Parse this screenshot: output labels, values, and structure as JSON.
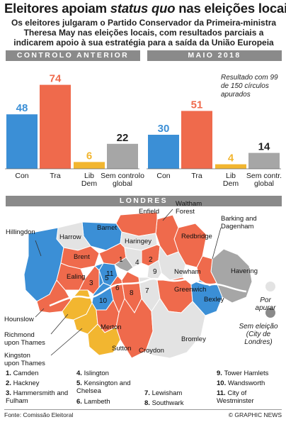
{
  "headline": {
    "part1": "Eleitores apoiam ",
    "italic": "status quo",
    "part2": " nas eleições locais"
  },
  "subhead": "Os eleitores julgaram o Partido Conservador da Primeira-ministra Theresa May nas eleições locais, com resultados parciais a indicarem apoio à sua estratégia para a saída da União Europeia",
  "chart_data": [
    {
      "type": "bar",
      "title": "CONTROLO ANTERIOR",
      "categories": [
        "Con",
        "Tra",
        "Lib Dem",
        "Sem controlo global"
      ],
      "values": [
        48,
        74,
        6,
        22
      ],
      "colors": [
        "#3b8fd6",
        "#ef6a4c",
        "#f2b630",
        "#a6a6a6"
      ]
    },
    {
      "type": "bar",
      "title": "MAIO 2018",
      "categories": [
        "Con",
        "Tra",
        "Lib Dem",
        "Sem contr. global"
      ],
      "values": [
        30,
        51,
        4,
        14
      ],
      "colors": [
        "#3b8fd6",
        "#ef6a4c",
        "#f2b630",
        "#a6a6a6"
      ],
      "annotation": "Resultado com 99 de 150 círculos apurados"
    }
  ],
  "labels": {
    "prev": [
      [
        "Con"
      ],
      [
        "Tra"
      ],
      [
        "Lib",
        "Dem"
      ],
      [
        "Sem controlo",
        "global"
      ]
    ],
    "curr": [
      [
        "Con"
      ],
      [
        "Tra"
      ],
      [
        "Lib",
        "Dem"
      ],
      [
        "Sem contr.",
        "global"
      ]
    ]
  },
  "london": {
    "header": "LONDRES",
    "map_labels": {
      "hillingdon": "Hillingdon",
      "harrow": "Harrow",
      "barnet": "Barnet",
      "enfield": "Enfield",
      "haringey": "Haringey",
      "waltham1": "Waltham",
      "waltham2": "Forest",
      "redbridge": "Redbridge",
      "barking1": "Barking and",
      "barking2": "Dagenham",
      "havering": "Havering",
      "brent": "Brent",
      "ealing": "Ealing",
      "newham": "Newham",
      "greenwich": "Greenwich",
      "bexley": "Bexley",
      "hounslow": "Hounslow",
      "richmond1": "Richmond",
      "richmond2": "upon Thames",
      "kingston1": "Kingston",
      "kingston2": "upon Thames",
      "merton": "Merton",
      "sutton": "Sutton",
      "croydon": "Croydon",
      "bromley": "Bromley"
    },
    "legend": {
      "pending_line1": "Por",
      "pending_line2": "apurar",
      "noelection_line1": "Sem eleição",
      "noelection_line2": "(City de Londres)"
    },
    "numbered_list": [
      {
        "num": "1.",
        "name": "Camden"
      },
      {
        "num": "2.",
        "name": "Hackney"
      },
      {
        "num": "3.",
        "name": "Hammersmith and Fulham"
      },
      {
        "num": "4.",
        "name": "Islington"
      },
      {
        "num": "5.",
        "name": "Kensington and Chelsea"
      },
      {
        "num": "6.",
        "name": "Lambeth"
      },
      {
        "num": "7.",
        "name": "Lewisham"
      },
      {
        "num": "8.",
        "name": "Southwark"
      },
      {
        "num": "9.",
        "name": "Tower Hamlets"
      },
      {
        "num": "10.",
        "name": "Wandsworth"
      },
      {
        "num": "11.",
        "name": "City of Westminster"
      }
    ]
  },
  "footer": {
    "source": "Fonte: Comissão Eleitoral",
    "credit": "© GRAPHIC NEWS"
  },
  "colors": {
    "con": "#3b8fd6",
    "lab": "#ef6a4c",
    "lib": "#f2b630",
    "noc": "#a6a6a6",
    "pending": "#e3e3e3",
    "header": "#8a8a8a"
  }
}
